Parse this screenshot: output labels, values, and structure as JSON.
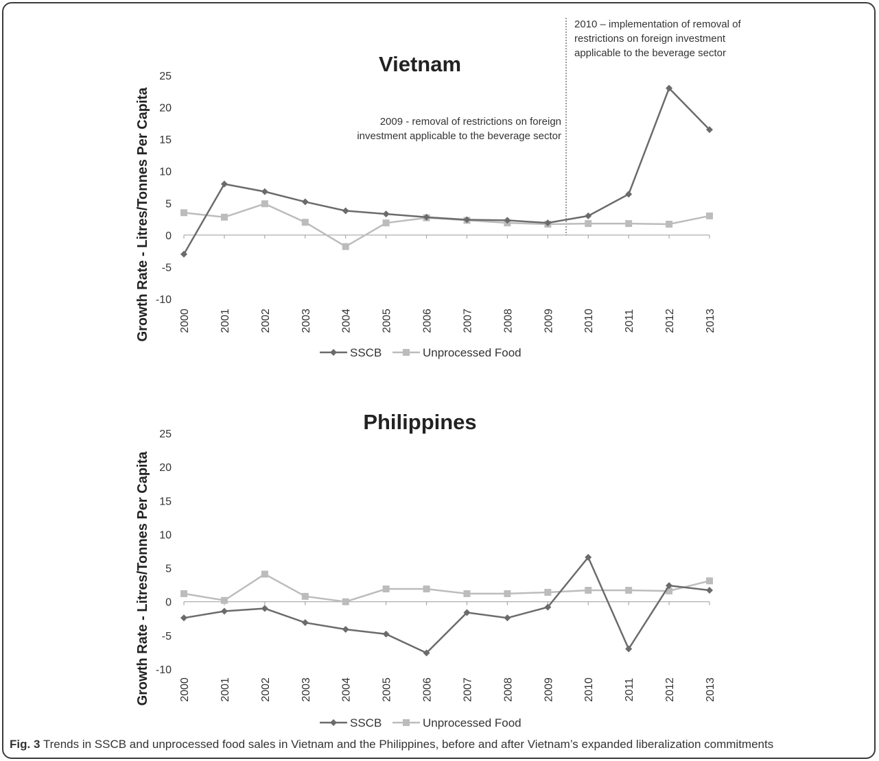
{
  "figure": {
    "caption_label": "Fig. 3",
    "caption_text": " Trends in SSCB and unprocessed food sales in Vietnam and the Philippines, before and after Vietnam’s expanded liberalization commitments"
  },
  "colors": {
    "sscb": "#6b6b6b",
    "unprocessed": "#bcbcbc",
    "axis": "#9a9a9a",
    "text": "#333333"
  },
  "chart_data": [
    {
      "type": "line",
      "title": "Vietnam",
      "ylabel": "Growth Rate - Litres/Tonnes Per Capita",
      "xlabel": "",
      "ylim": [
        -10,
        25
      ],
      "yticks": [
        -10,
        -5,
        0,
        5,
        10,
        15,
        20,
        25
      ],
      "categories": [
        "2000",
        "2001",
        "2002",
        "2003",
        "2004",
        "2005",
        "2006",
        "2007",
        "2008",
        "2009",
        "2010",
        "2011",
        "2012",
        "2013"
      ],
      "series": [
        {
          "name": "SSCB",
          "marker": "diamond",
          "values": [
            -3.0,
            8.0,
            6.8,
            5.2,
            3.8,
            3.3,
            2.8,
            2.4,
            2.3,
            1.9,
            3.0,
            6.4,
            23.0,
            16.5
          ]
        },
        {
          "name": "Unprocessed Food",
          "marker": "square",
          "values": [
            3.5,
            2.8,
            4.9,
            2.0,
            -1.8,
            1.9,
            2.7,
            2.3,
            1.9,
            1.7,
            1.8,
            1.8,
            1.7,
            3.0
          ]
        }
      ],
      "annotations": [
        {
          "lines": [
            "2009 -  removal of restrictions on foreign",
            "investment applicable to the beverage sector"
          ]
        },
        {
          "lines": [
            "2010 – implementation of removal of",
            "restrictions on foreign investment",
            "applicable to the beverage sector"
          ]
        }
      ],
      "legend": "bottom"
    },
    {
      "type": "line",
      "title": "Philippines",
      "ylabel": "Growth Rate - Litres/Tonnes Per Capita",
      "xlabel": "",
      "ylim": [
        -10,
        25
      ],
      "yticks": [
        -10,
        -5,
        0,
        5,
        10,
        15,
        20,
        25
      ],
      "categories": [
        "2000",
        "2001",
        "2002",
        "2003",
        "2004",
        "2005",
        "2006",
        "2007",
        "2008",
        "2009",
        "2010",
        "2011",
        "2012",
        "2013"
      ],
      "series": [
        {
          "name": "SSCB",
          "marker": "diamond",
          "values": [
            -2.4,
            -1.4,
            -1.0,
            -3.1,
            -4.1,
            -4.8,
            -7.6,
            -1.6,
            -2.4,
            -0.8,
            6.6,
            -7.0,
            2.4,
            1.7
          ]
        },
        {
          "name": "Unprocessed Food",
          "marker": "square",
          "values": [
            1.2,
            0.2,
            4.1,
            0.8,
            0.0,
            1.9,
            1.9,
            1.2,
            1.2,
            1.4,
            1.7,
            1.7,
            1.6,
            3.1
          ]
        }
      ],
      "legend": "bottom"
    }
  ]
}
